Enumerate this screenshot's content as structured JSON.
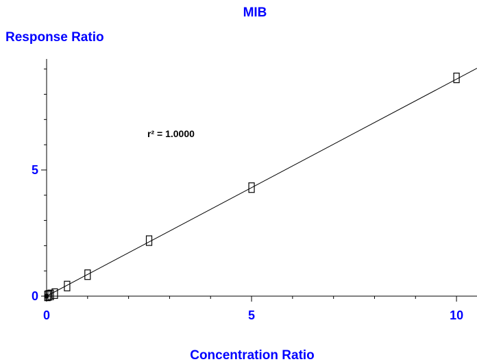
{
  "chart_data": {
    "type": "scatter",
    "title": "MIB",
    "xlabel": "Concentration Ratio",
    "ylabel": "Response Ratio",
    "xlim": [
      0,
      10.5
    ],
    "ylim": [
      0,
      9.4
    ],
    "x_ticks": [
      0,
      5,
      10
    ],
    "x_tick_labels": [
      "0",
      "5",
      "10"
    ],
    "y_ticks": [
      0,
      5
    ],
    "y_tick_labels": [
      "0",
      "5"
    ],
    "grid": false,
    "annotation": {
      "text": "r² = 1.0000"
    },
    "series": [
      {
        "marker": "open-square",
        "points": [
          {
            "x": 0.02,
            "y": 0.01
          },
          {
            "x": 0.05,
            "y": 0.03
          },
          {
            "x": 0.1,
            "y": 0.05
          },
          {
            "x": 0.2,
            "y": 0.1
          },
          {
            "x": 0.5,
            "y": 0.4
          },
          {
            "x": 1.0,
            "y": 0.85
          },
          {
            "x": 2.5,
            "y": 2.2
          },
          {
            "x": 5.0,
            "y": 4.3
          },
          {
            "x": 10.0,
            "y": 8.65
          }
        ]
      }
    ],
    "fit_line": {
      "slope": 0.86,
      "intercept": 0.0,
      "x_range": [
        0,
        10.5
      ]
    },
    "colors": {
      "text": "#0000ff",
      "axis": "#000000",
      "marker": "#000000"
    }
  }
}
